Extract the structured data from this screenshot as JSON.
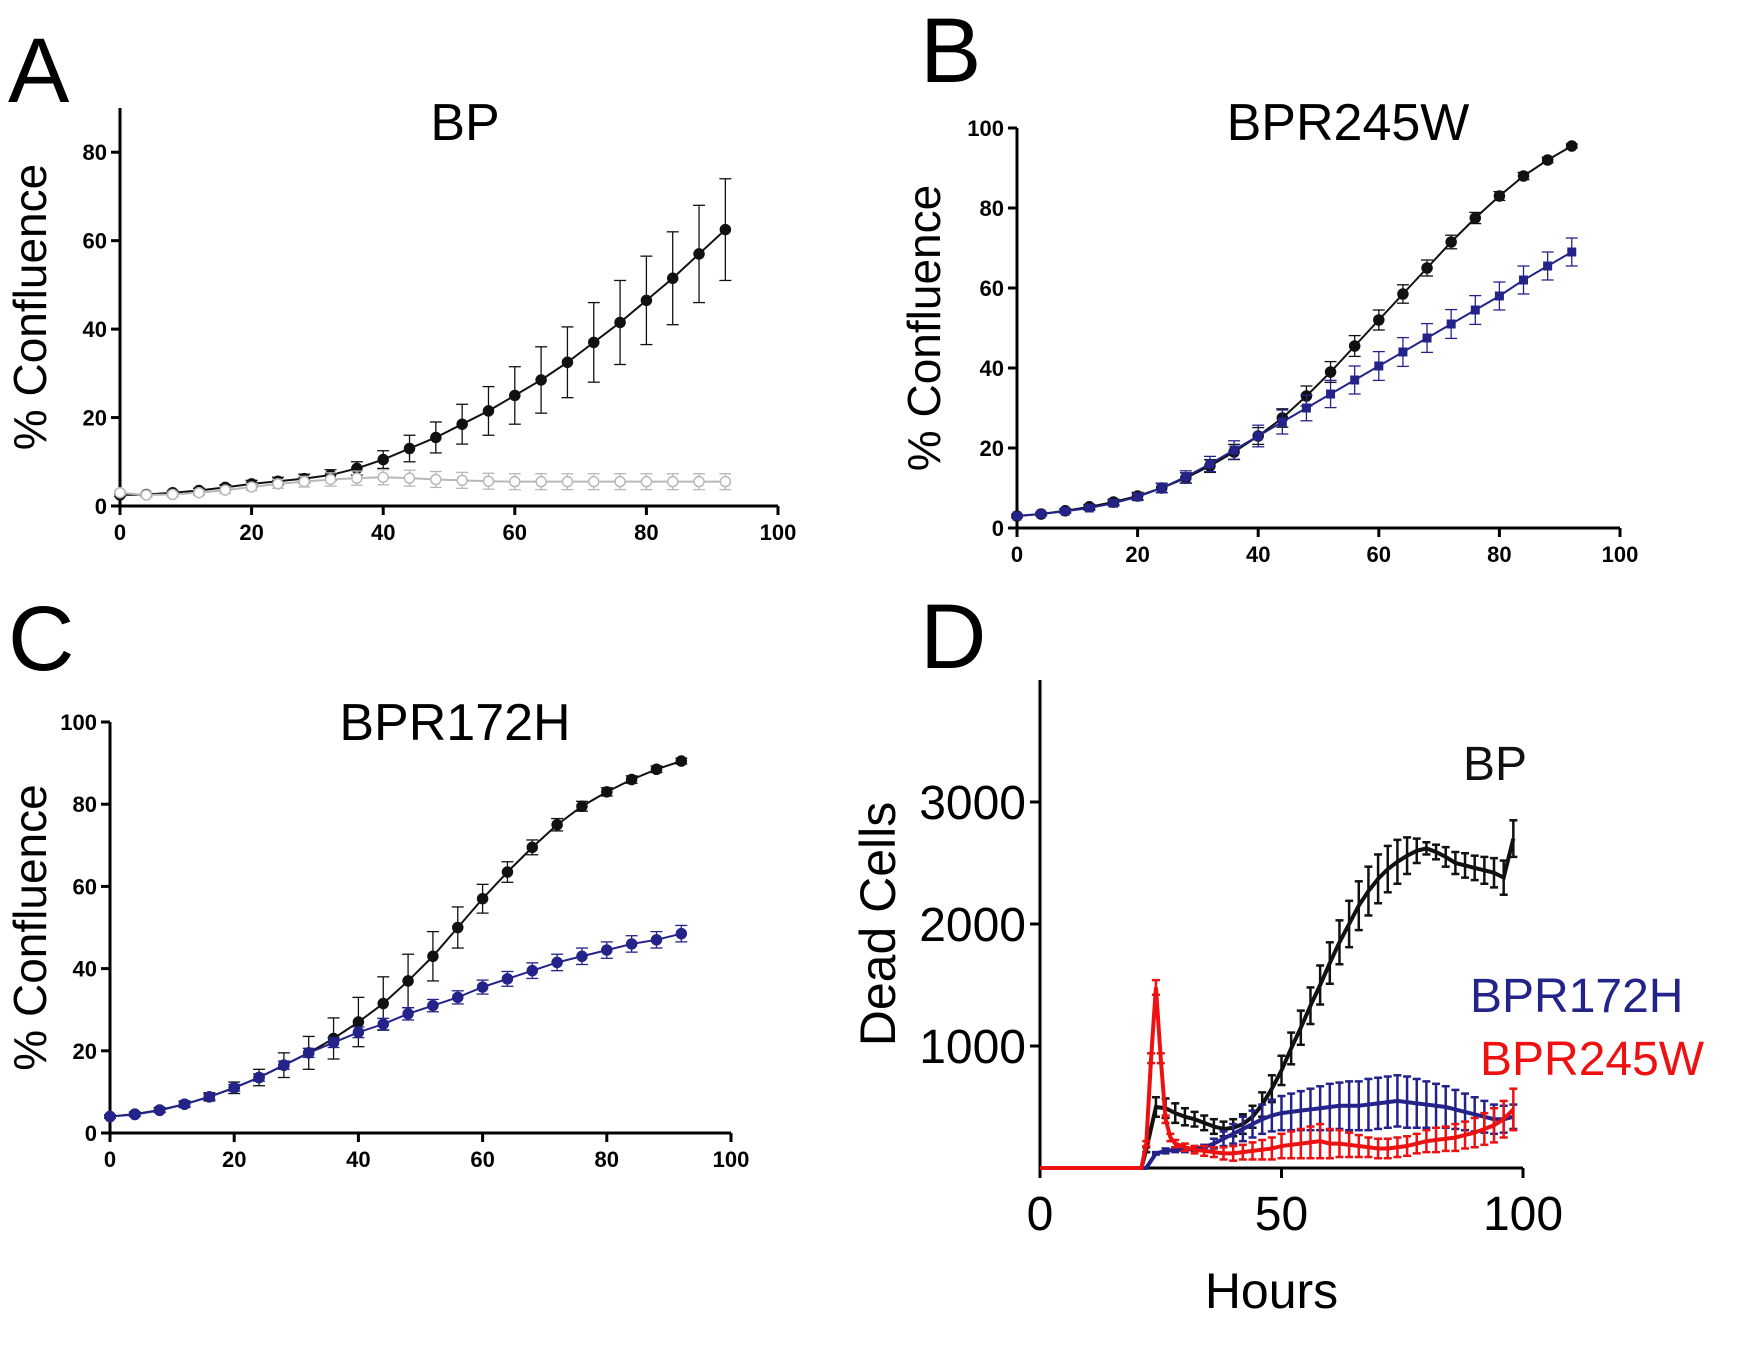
{
  "colors": {
    "black_series": "#111111",
    "gray_series": "#b8b8b8",
    "blue_series": "#23238a",
    "red_series": "#ee1111"
  },
  "chart_data": [
    {
      "panel": "A",
      "type": "line",
      "title": "BP",
      "xlabel": "",
      "ylabel": "% Confluence",
      "xlim": [
        0,
        100
      ],
      "ylim": [
        0,
        90
      ],
      "xticks": [
        "0",
        "20",
        "40",
        "60",
        "80",
        "100"
      ],
      "yticks": [
        "0",
        "20",
        "40",
        "60",
        "80"
      ],
      "series": [
        {
          "color": "black_series",
          "marker": "circle",
          "filled": true,
          "x": [
            0,
            4,
            8,
            12,
            16,
            20,
            24,
            28,
            32,
            36,
            40,
            44,
            48,
            52,
            56,
            60,
            64,
            68,
            72,
            76,
            80,
            84,
            88,
            92
          ],
          "y": [
            2.5,
            2.6,
            3.0,
            3.5,
            4.2,
            5.0,
            5.6,
            6.2,
            7.0,
            8.5,
            10.5,
            13.0,
            15.5,
            18.5,
            21.5,
            25.0,
            28.5,
            32.5,
            37.0,
            41.5,
            46.5,
            51.5,
            57.0,
            62.5
          ],
          "err": [
            0.3,
            0.3,
            0.4,
            0.5,
            0.6,
            0.8,
            0.9,
            1.0,
            1.2,
            1.5,
            2,
            3,
            3.5,
            4.5,
            5.5,
            6.5,
            7.5,
            8,
            9,
            9.5,
            10,
            10.5,
            11,
            11.5
          ]
        },
        {
          "color": "gray_series",
          "marker": "circle",
          "filled": false,
          "x": [
            0,
            4,
            8,
            12,
            16,
            20,
            24,
            28,
            32,
            36,
            40,
            44,
            48,
            52,
            56,
            60,
            64,
            68,
            72,
            76,
            80,
            84,
            88,
            92
          ],
          "y": [
            3.0,
            2.5,
            2.6,
            3.0,
            3.6,
            4.3,
            5.0,
            5.5,
            6.0,
            6.3,
            6.5,
            6.3,
            6.0,
            5.8,
            5.6,
            5.5,
            5.5,
            5.5,
            5.5,
            5.5,
            5.5,
            5.5,
            5.5,
            5.5
          ],
          "err": [
            0.5,
            0.5,
            0.5,
            0.6,
            0.7,
            0.8,
            1.0,
            1.2,
            1.5,
            1.6,
            1.7,
            1.8,
            1.8,
            1.8,
            1.8,
            1.8,
            1.8,
            1.8,
            1.8,
            1.8,
            1.8,
            1.8,
            1.8,
            1.8
          ]
        }
      ]
    },
    {
      "panel": "B",
      "type": "line",
      "title": "BPR245W",
      "xlabel": "",
      "ylabel": "% Confluence",
      "xlim": [
        0,
        100
      ],
      "ylim": [
        0,
        100
      ],
      "xticks": [
        "0",
        "20",
        "40",
        "60",
        "80",
        "100"
      ],
      "yticks": [
        "0",
        "20",
        "40",
        "60",
        "80",
        "100"
      ],
      "series": [
        {
          "color": "black_series",
          "marker": "circle",
          "filled": true,
          "x": [
            0,
            4,
            8,
            12,
            16,
            20,
            24,
            28,
            32,
            36,
            40,
            44,
            48,
            52,
            56,
            60,
            64,
            68,
            72,
            76,
            80,
            84,
            88,
            92
          ],
          "y": [
            3,
            3.5,
            4.3,
            5.3,
            6.5,
            8,
            10,
            12.5,
            15.5,
            19,
            23,
            27.5,
            33,
            39,
            45.5,
            52,
            58.5,
            65,
            71.5,
            77.5,
            83,
            88,
            92,
            95.5
          ],
          "err": [
            0.4,
            0.4,
            0.5,
            0.6,
            0.7,
            0.9,
            1.1,
            1.3,
            1.6,
            1.9,
            2.1,
            2.3,
            2.5,
            2.6,
            2.6,
            2.5,
            2.3,
            2.0,
            1.7,
            1.4,
            1.1,
            0.9,
            0.7,
            0.5
          ]
        },
        {
          "color": "blue_series",
          "marker": "square",
          "filled": true,
          "x": [
            0,
            4,
            8,
            12,
            16,
            20,
            24,
            28,
            32,
            36,
            40,
            44,
            48,
            52,
            56,
            60,
            64,
            68,
            72,
            76,
            80,
            84,
            88,
            92
          ],
          "y": [
            3,
            3.5,
            4.2,
            5.0,
            6.2,
            7.8,
            10,
            12.8,
            16,
            19.5,
            23,
            26.5,
            30,
            33.5,
            37,
            40.5,
            44,
            47.5,
            51,
            54.5,
            58,
            62,
            65.5,
            69
          ],
          "err": [
            0.4,
            0.4,
            0.5,
            0.6,
            0.7,
            0.9,
            1.2,
            1.5,
            1.9,
            2.3,
            2.7,
            3.0,
            3.2,
            3.4,
            3.5,
            3.6,
            3.6,
            3.6,
            3.6,
            3.6,
            3.5,
            3.5,
            3.5,
            3.5
          ]
        }
      ]
    },
    {
      "panel": "C",
      "type": "line",
      "title": "BPR172H",
      "xlabel": "",
      "ylabel": "% Confluence",
      "xlim": [
        0,
        100
      ],
      "ylim": [
        0,
        100
      ],
      "xticks": [
        "0",
        "20",
        "40",
        "60",
        "80",
        "100"
      ],
      "yticks": [
        "0",
        "20",
        "40",
        "60",
        "80",
        "100"
      ],
      "series": [
        {
          "color": "black_series",
          "marker": "circle",
          "filled": true,
          "x": [
            0,
            4,
            8,
            12,
            16,
            20,
            24,
            28,
            32,
            36,
            40,
            44,
            48,
            52,
            56,
            60,
            64,
            68,
            72,
            76,
            80,
            84,
            88,
            92
          ],
          "y": [
            4,
            4.6,
            5.6,
            7,
            8.8,
            11,
            13.5,
            16.5,
            19.5,
            23,
            27,
            31.5,
            37,
            43,
            50,
            57,
            63.5,
            69.5,
            75,
            79.5,
            83,
            86,
            88.5,
            90.5
          ],
          "err": [
            0.4,
            0.5,
            0.6,
            0.8,
            1.0,
            1.4,
            2,
            3,
            4,
            5,
            6,
            6.5,
            6.5,
            6,
            5,
            3.5,
            2.5,
            1.8,
            1.5,
            1.2,
            1.0,
            0.9,
            0.8,
            0.7
          ]
        },
        {
          "color": "blue_series",
          "marker": "circle",
          "filled": true,
          "x": [
            0,
            4,
            8,
            12,
            16,
            20,
            24,
            28,
            32,
            36,
            40,
            44,
            48,
            52,
            56,
            60,
            64,
            68,
            72,
            76,
            80,
            84,
            88,
            92
          ],
          "y": [
            4,
            4.5,
            5.5,
            7,
            8.8,
            11,
            13.5,
            16.5,
            19.5,
            22,
            24.5,
            26.5,
            29,
            31,
            33,
            35.5,
            37.5,
            39.5,
            41.5,
            43,
            44.5,
            46,
            47,
            48.5
          ],
          "err": [
            0.4,
            0.4,
            0.5,
            0.6,
            0.7,
            0.8,
            0.9,
            1.0,
            1.1,
            1.2,
            1.3,
            1.4,
            1.5,
            1.5,
            1.6,
            1.7,
            1.8,
            1.9,
            2.0,
            2.0,
            2.0,
            2.0,
            2.0,
            2.0
          ]
        }
      ]
    },
    {
      "panel": "D",
      "type": "line",
      "title": "",
      "xlabel": "Hours",
      "ylabel": "Dead Cells",
      "xlim": [
        0,
        100
      ],
      "ylim": [
        0,
        4000
      ],
      "xticks": [
        "0",
        "50",
        "100"
      ],
      "yticks": [
        "1000",
        "2000",
        "3000"
      ],
      "legend_placement": "right",
      "series": [
        {
          "name": "BP",
          "color": "black_series",
          "x": [
            0,
            21,
            22,
            24,
            26,
            28,
            30,
            32,
            34,
            36,
            38,
            40,
            42,
            44,
            46,
            48,
            50,
            52,
            54,
            56,
            58,
            60,
            62,
            64,
            66,
            68,
            70,
            72,
            74,
            76,
            78,
            80,
            82,
            84,
            86,
            88,
            90,
            92,
            94,
            96,
            98
          ],
          "y": [
            0,
            0,
            150,
            500,
            490,
            450,
            420,
            400,
            370,
            340,
            320,
            330,
            360,
            420,
            520,
            650,
            800,
            980,
            1150,
            1330,
            1500,
            1680,
            1850,
            2000,
            2150,
            2270,
            2370,
            2450,
            2510,
            2560,
            2600,
            2620,
            2590,
            2550,
            2500,
            2480,
            2460,
            2440,
            2420,
            2380,
            2700
          ],
          "err": [
            0,
            0,
            20,
            80,
            80,
            80,
            70,
            60,
            60,
            60,
            60,
            70,
            80,
            90,
            100,
            110,
            120,
            130,
            140,
            150,
            160,
            170,
            180,
            190,
            200,
            200,
            200,
            190,
            180,
            150,
            100,
            50,
            60,
            80,
            90,
            100,
            100,
            110,
            120,
            140,
            150
          ]
        },
        {
          "name": "BPR172H",
          "color": "blue_series",
          "x": [
            0,
            22,
            24,
            26,
            28,
            30,
            32,
            34,
            36,
            38,
            40,
            42,
            44,
            46,
            48,
            50,
            52,
            54,
            56,
            58,
            60,
            62,
            64,
            66,
            68,
            70,
            72,
            74,
            76,
            78,
            80,
            82,
            84,
            86,
            88,
            90,
            92,
            94,
            96,
            98
          ],
          "y": [
            0,
            0,
            120,
            140,
            150,
            150,
            160,
            170,
            200,
            240,
            280,
            320,
            360,
            400,
            430,
            450,
            460,
            470,
            480,
            490,
            500,
            510,
            510,
            510,
            520,
            530,
            540,
            550,
            540,
            530,
            520,
            510,
            500,
            480,
            460,
            440,
            420,
            400,
            400,
            420
          ],
          "err": [
            0,
            0,
            10,
            20,
            20,
            20,
            20,
            20,
            40,
            60,
            80,
            100,
            110,
            120,
            130,
            140,
            150,
            160,
            170,
            180,
            190,
            190,
            200,
            200,
            210,
            210,
            210,
            210,
            210,
            200,
            190,
            180,
            170,
            160,
            150,
            140,
            130,
            120,
            110,
            100
          ]
        },
        {
          "name": "BPR245W",
          "color": "red_series",
          "x": [
            0,
            21,
            22,
            23,
            24,
            25,
            26,
            27,
            28,
            30,
            32,
            34,
            36,
            38,
            40,
            42,
            44,
            46,
            48,
            50,
            52,
            54,
            56,
            58,
            60,
            62,
            64,
            66,
            68,
            70,
            72,
            74,
            76,
            78,
            80,
            82,
            84,
            86,
            88,
            90,
            92,
            94,
            96,
            98
          ],
          "y": [
            0,
            0,
            200,
            900,
            1480,
            900,
            400,
            250,
            200,
            170,
            150,
            140,
            130,
            120,
            120,
            130,
            140,
            150,
            160,
            180,
            190,
            200,
            210,
            220,
            200,
            200,
            190,
            180,
            170,
            160,
            160,
            170,
            180,
            200,
            220,
            230,
            240,
            250,
            270,
            290,
            320,
            350,
            400,
            480
          ],
          "err": [
            0,
            0,
            20,
            40,
            60,
            40,
            30,
            30,
            30,
            30,
            30,
            40,
            40,
            50,
            60,
            60,
            70,
            80,
            90,
            100,
            110,
            120,
            130,
            140,
            120,
            110,
            100,
            90,
            80,
            80,
            80,
            80,
            80,
            80,
            90,
            100,
            100,
            110,
            110,
            120,
            130,
            140,
            150,
            170
          ]
        }
      ]
    }
  ]
}
